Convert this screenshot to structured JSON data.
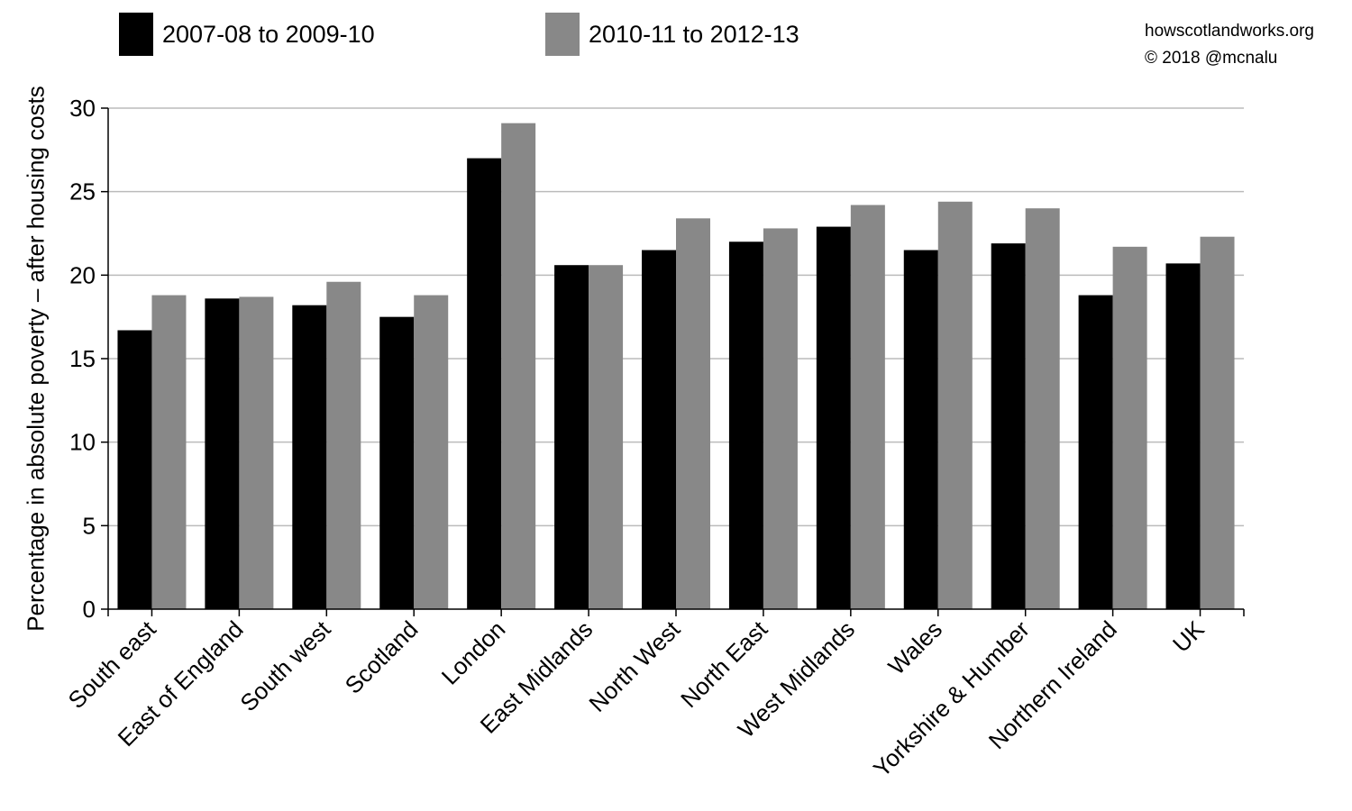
{
  "legend": [
    {
      "label": "2007-08 to 2009-10",
      "color": "#000000"
    },
    {
      "label": "2010-11 to 2012-13",
      "color": "#888888"
    }
  ],
  "credit": {
    "line1": "howscotlandworks.org",
    "line2": "© 2018  @mcnalu"
  },
  "chart_data": {
    "type": "bar",
    "title": "",
    "xlabel": "",
    "ylabel": "Percentage in absolute poverty – after housing costs",
    "ylim": [
      0,
      30
    ],
    "yticks": [
      0,
      5,
      10,
      15,
      20,
      25,
      30
    ],
    "grid": true,
    "legend_position": "top",
    "categories": [
      "South east",
      "East of England",
      "South west",
      "Scotland",
      "London",
      "East Midlands",
      "North West",
      "North East",
      "West Midlands",
      "Wales",
      "Yorkshire & Humber",
      "Northern Ireland",
      "UK"
    ],
    "series": [
      {
        "name": "2007-08 to 2009-10",
        "color": "#000000",
        "values": [
          16.7,
          18.6,
          18.2,
          17.5,
          27.0,
          20.6,
          21.5,
          22.0,
          22.9,
          21.5,
          21.9,
          18.8,
          20.7
        ]
      },
      {
        "name": "2010-11 to 2012-13",
        "color": "#888888",
        "values": [
          18.8,
          18.7,
          19.6,
          18.8,
          29.1,
          20.6,
          23.4,
          22.8,
          24.2,
          24.4,
          24.0,
          21.7,
          22.3
        ]
      }
    ]
  }
}
